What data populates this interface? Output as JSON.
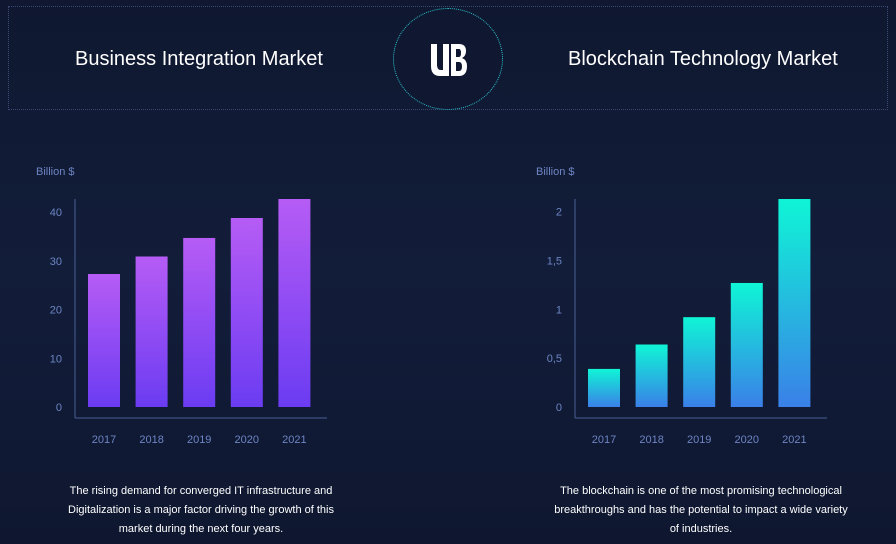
{
  "header": {
    "left_title": "Business Integration Market",
    "right_title": "Blockchain Technology Market",
    "logo_text": "UB"
  },
  "chart_data": [
    {
      "type": "bar",
      "ylabel": "Billion $",
      "categories": [
        "2017",
        "2018",
        "2019",
        "2020",
        "2021"
      ],
      "values": [
        27.3,
        30.9,
        34.7,
        38.8,
        42.7
      ],
      "ylim": [
        0,
        42.7
      ],
      "yticks": [
        0,
        10,
        20,
        30,
        40
      ],
      "ytick_labels": [
        "0",
        "10",
        "20",
        "30",
        "40"
      ],
      "colors": {
        "top": "#b65cf5",
        "bottom": "#6b3cf2"
      },
      "grid": false
    },
    {
      "type": "bar",
      "ylabel": "Billion $",
      "categories": [
        "2017",
        "2018",
        "2019",
        "2020",
        "2021"
      ],
      "values": [
        0.39,
        0.64,
        0.92,
        1.27,
        2.13
      ],
      "ylim": [
        0,
        2.13
      ],
      "yticks": [
        0,
        0.5,
        1,
        1.5,
        2
      ],
      "ytick_labels": [
        "0",
        "0,5",
        "1",
        "1,5",
        "2"
      ],
      "colors": {
        "top": "#0ff5d6",
        "bottom": "#3a80e8"
      },
      "grid": false
    }
  ],
  "descriptions": {
    "left": "The rising demand for converged IT infrastructure and Digitalization is a major factor driving the growth of this market during the next four years.",
    "right": "The blockchain is one of the most promising technological breakthroughs and has the potential to impact a wide variety of industries."
  }
}
